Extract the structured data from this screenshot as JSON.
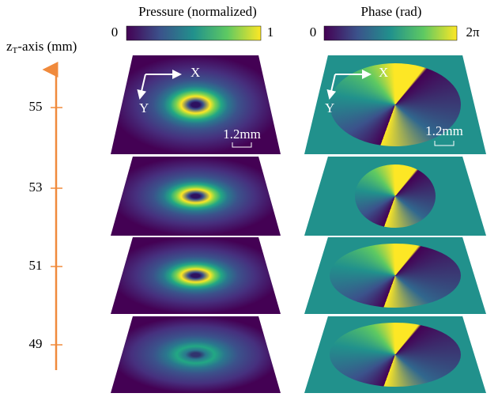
{
  "colorbars": [
    {
      "title": "Pressure (normalized)",
      "min_label": "0",
      "max_label": "1"
    },
    {
      "title": "Phase (rad)",
      "min_label": "0",
      "max_label": "2π"
    }
  ],
  "axis": {
    "label_main": "z",
    "label_sub": "T",
    "label_rest": "-axis (mm)",
    "ticks": [
      55,
      53,
      51,
      49
    ]
  },
  "annotations": {
    "pressure": {
      "x": "X",
      "y": "Y",
      "scale": "1.2mm"
    },
    "phase": {
      "x": "X",
      "y": "Y",
      "scale": "1.2mm"
    }
  }
}
